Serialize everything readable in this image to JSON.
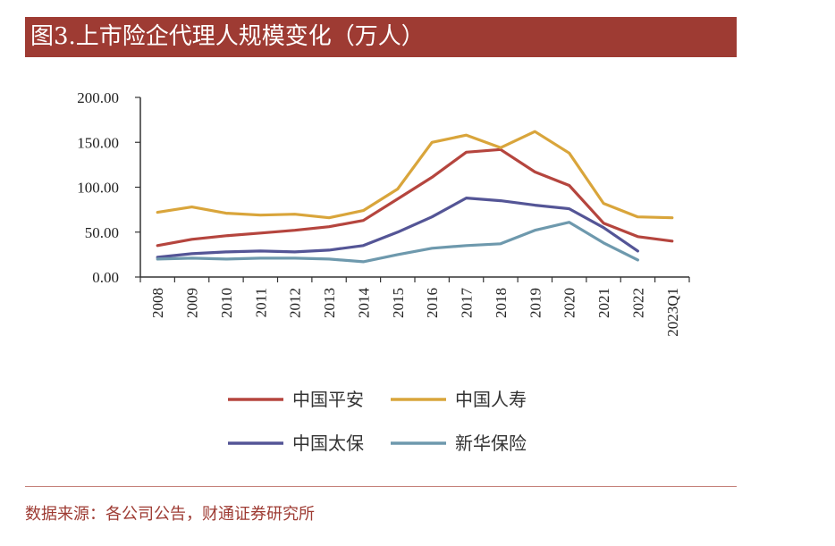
{
  "title": "图3.上市险企代理人规模变化（万人）",
  "source": "数据来源：各公司公告，财通证券研究所",
  "chart_data": {
    "type": "line",
    "title": "图3.上市险企代理人规模变化（万人）",
    "categories": [
      "2008",
      "2009",
      "2010",
      "2011",
      "2012",
      "2013",
      "2014",
      "2015",
      "2016",
      "2017",
      "2018",
      "2019",
      "2020",
      "2021",
      "2022",
      "2023Q1"
    ],
    "ylim": [
      0,
      200
    ],
    "yticks": [
      "0.00",
      "50.00",
      "100.00",
      "150.00",
      "200.00"
    ],
    "ytick_values": [
      0,
      50,
      100,
      150,
      200
    ],
    "grid": false,
    "legend_position": "bottom",
    "series": [
      {
        "name": "中国平安",
        "color": "#b5453e",
        "values": [
          35,
          42,
          46,
          49,
          52,
          56,
          63,
          87,
          111,
          139,
          142,
          117,
          102,
          60,
          45,
          40
        ]
      },
      {
        "name": "中国人寿",
        "color": "#d9a53b",
        "values": [
          72,
          78,
          71,
          69,
          70,
          66,
          74,
          98,
          150,
          158,
          144,
          162,
          138,
          82,
          67,
          66
        ]
      },
      {
        "name": "中国太保",
        "color": "#545596",
        "values": [
          22,
          26,
          28,
          29,
          28,
          30,
          35,
          50,
          67,
          88,
          85,
          80,
          76,
          55,
          29,
          null
        ]
      },
      {
        "name": "新华保险",
        "color": "#6e99ad",
        "values": [
          20,
          21,
          20,
          21,
          21,
          20,
          17,
          25,
          32,
          35,
          37,
          52,
          61,
          38,
          19,
          null
        ]
      }
    ]
  }
}
